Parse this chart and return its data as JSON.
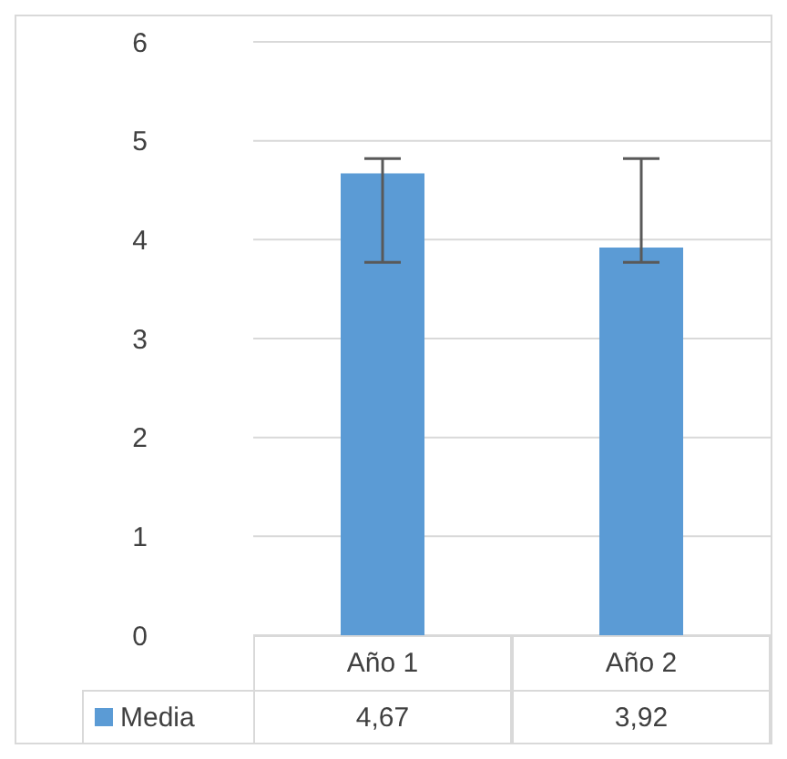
{
  "chart_data": {
    "type": "bar",
    "categories": [
      "Año 1",
      "Año 2"
    ],
    "series": [
      {
        "name": "Media",
        "color": "#5b9bd5",
        "values": [
          4.67,
          3.92
        ],
        "value_labels": [
          "4,67",
          "3,92"
        ],
        "errors": [
          [
            3.77,
            4.82
          ],
          [
            3.77,
            4.82
          ]
        ]
      }
    ],
    "ylim": [
      0,
      6
    ],
    "yticks": [
      0,
      1,
      2,
      3,
      4,
      5,
      6
    ],
    "grid": "y",
    "legend": "bottom"
  }
}
